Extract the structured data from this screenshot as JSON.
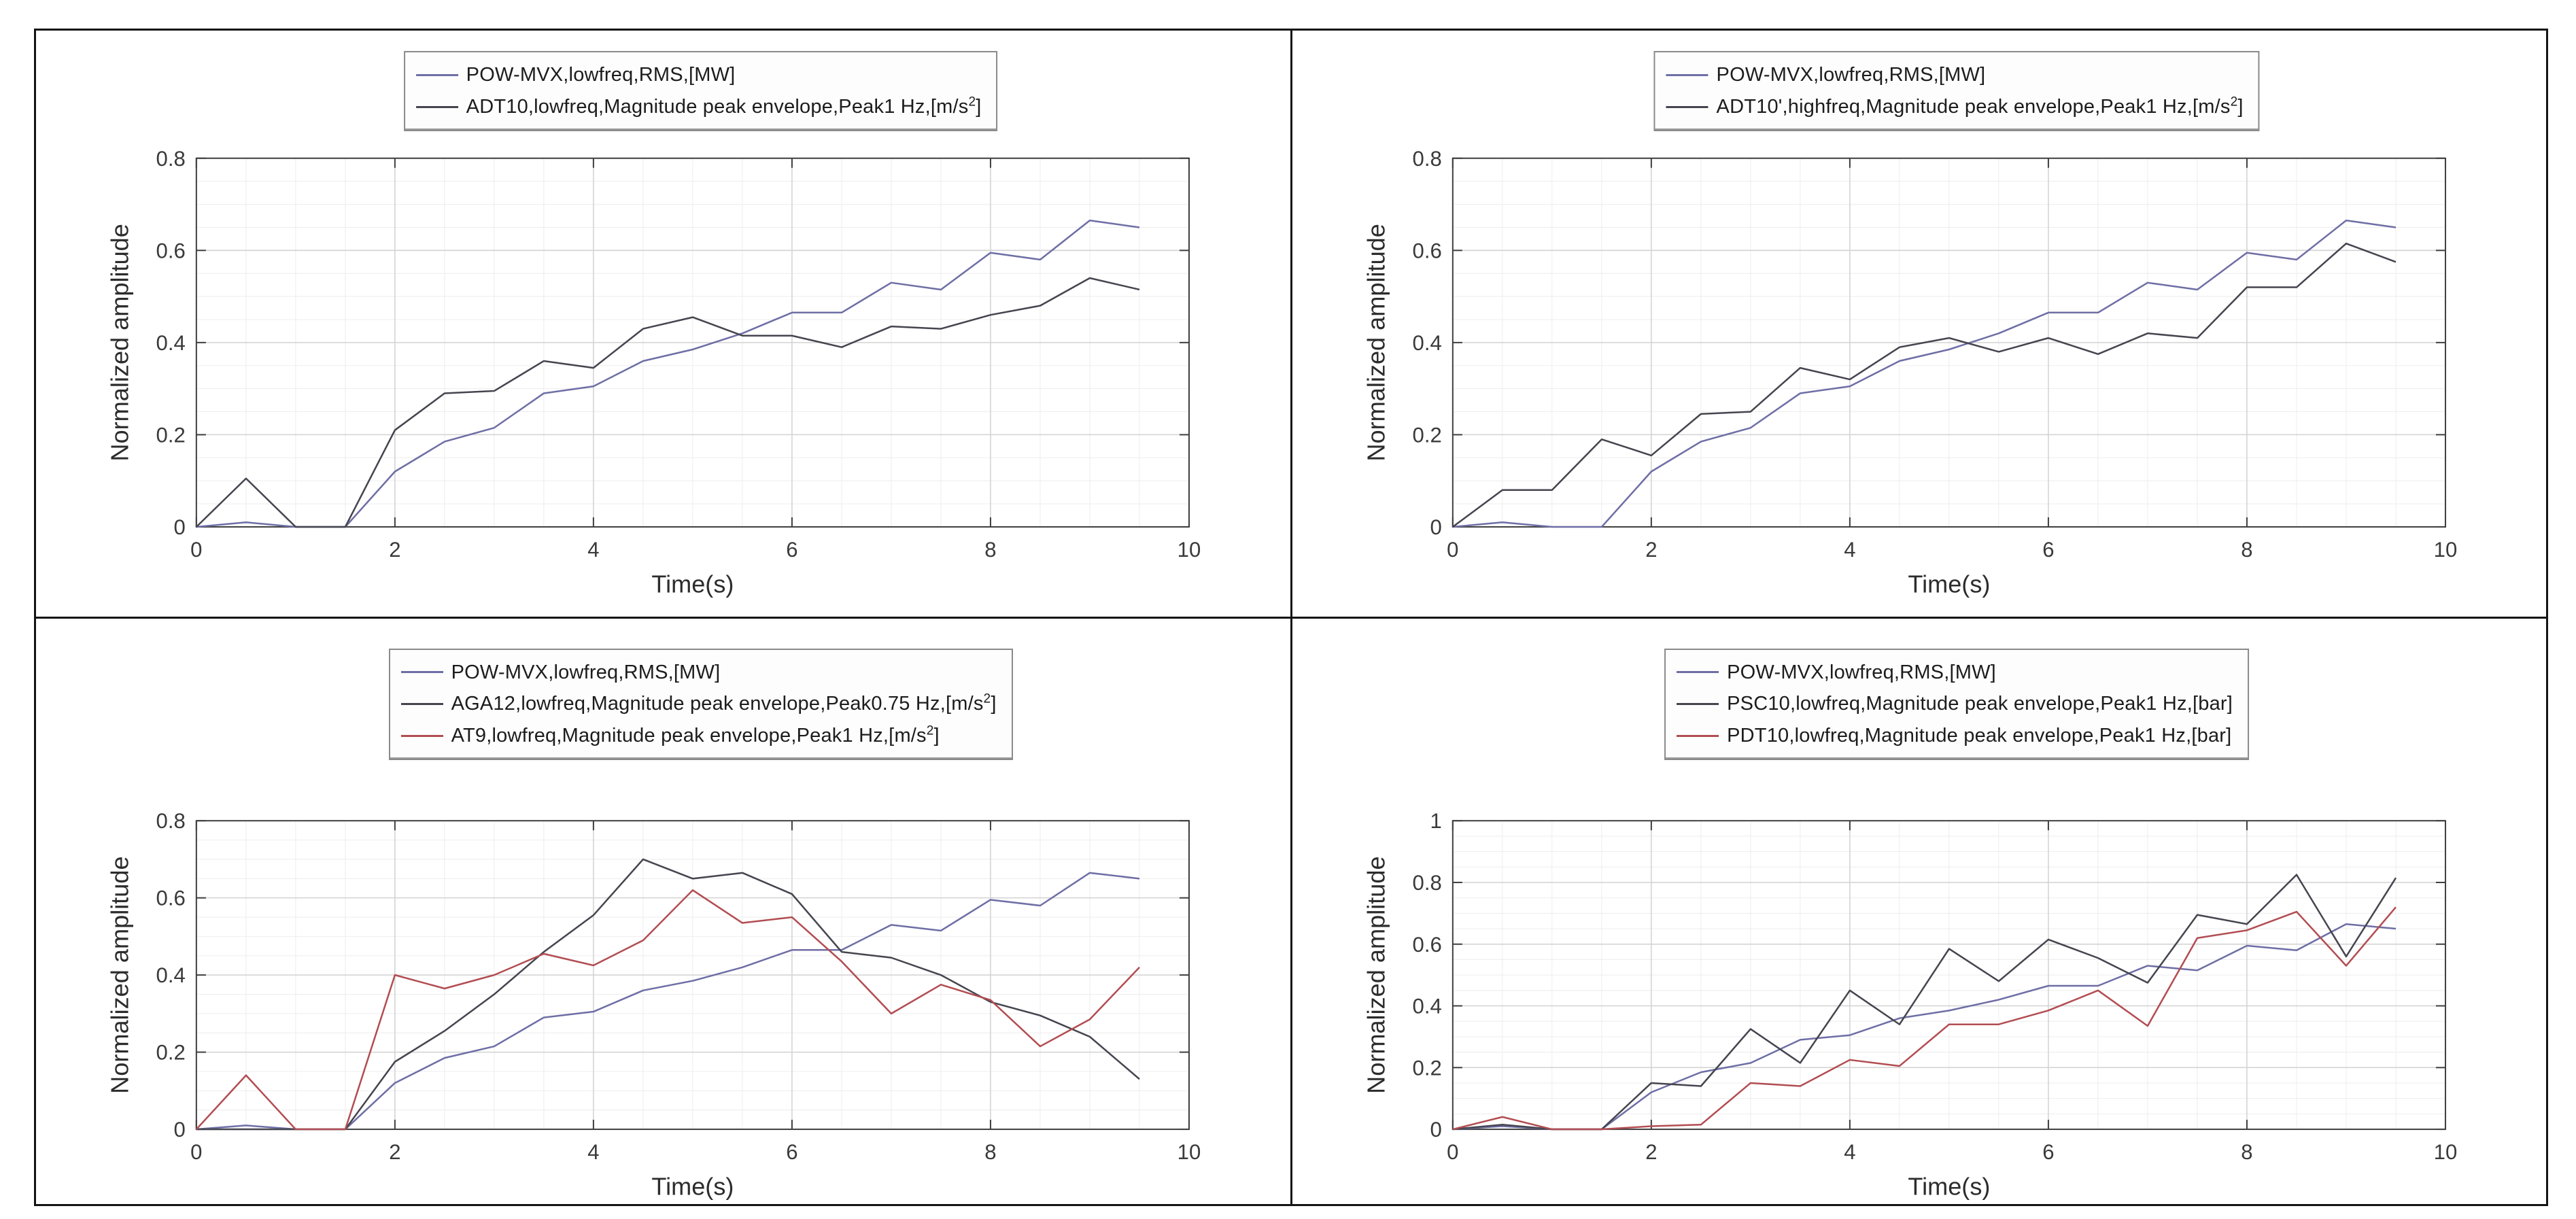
{
  "figure": {
    "layout": "2x2-grid",
    "background": "#ffffff",
    "border_color": "#141414",
    "axis_color": "#3f3f3f",
    "major_grid_color": "#d2d2d2",
    "minor_grid_color": "#efeded",
    "text_color": "#3a3a3a"
  },
  "chart_data": [
    {
      "type": "line",
      "position": "top-left",
      "xlabel": "Time(s)",
      "ylabel": "Normalized amplitude",
      "xlim": [
        0,
        10
      ],
      "ylim": [
        0,
        0.8
      ],
      "xticks": [
        0,
        2,
        4,
        6,
        8,
        10
      ],
      "xtick_labels": [
        "0",
        "2",
        "4",
        "6",
        "8",
        "10"
      ],
      "yticks": [
        0,
        0.2,
        0.4,
        0.6,
        0.8
      ],
      "ytick_labels": [
        "0",
        "0.2",
        "0.4",
        "0.6",
        "0.8"
      ],
      "x_minor_step": 0.5,
      "y_minor_step": 0.05,
      "grid": "on",
      "legend_position": "top-center",
      "x": [
        0,
        0.5,
        1,
        1.5,
        2,
        2.5,
        3,
        3.5,
        4,
        4.5,
        5,
        5.5,
        6,
        6.5,
        7,
        7.5,
        8,
        8.5,
        9,
        9.5
      ],
      "series": [
        {
          "name": "POW-MVX,lowfreq,RMS,[MW]",
          "label_pre": "POW-MVX,lowfreq,RMS,[MW]",
          "label_sup": "",
          "label_post": "",
          "color": "#6e6ea6",
          "values": [
            0,
            0.01,
            0,
            0,
            0.12,
            0.185,
            0.215,
            0.29,
            0.305,
            0.36,
            0.385,
            0.42,
            0.465,
            0.465,
            0.53,
            0.515,
            0.595,
            0.58,
            0.665,
            0.65
          ]
        },
        {
          "name": "ADT10,lowfreq,Magnitude peak envelope,Peak1 Hz,[m/s^2]",
          "label_pre": "ADT10,lowfreq,Magnitude peak envelope,Peak1 Hz,[m/s",
          "label_sup": "2",
          "label_post": "]",
          "color": "#45454f",
          "values": [
            0,
            0.105,
            0,
            0,
            0.21,
            0.29,
            0.295,
            0.36,
            0.345,
            0.43,
            0.455,
            0.415,
            0.415,
            0.39,
            0.435,
            0.43,
            0.46,
            0.48,
            0.54,
            0.515
          ]
        }
      ]
    },
    {
      "type": "line",
      "position": "top-right",
      "xlabel": "Time(s)",
      "ylabel": "Normalized amplitude",
      "xlim": [
        0,
        10
      ],
      "ylim": [
        0,
        0.8
      ],
      "xticks": [
        0,
        2,
        4,
        6,
        8,
        10
      ],
      "xtick_labels": [
        "0",
        "2",
        "4",
        "6",
        "8",
        "10"
      ],
      "yticks": [
        0,
        0.2,
        0.4,
        0.6,
        0.8
      ],
      "ytick_labels": [
        "0",
        "0.2",
        "0.4",
        "0.6",
        "0.8"
      ],
      "x_minor_step": 0.5,
      "y_minor_step": 0.05,
      "grid": "on",
      "legend_position": "top-center",
      "x": [
        0,
        0.5,
        1,
        1.5,
        2,
        2.5,
        3,
        3.5,
        4,
        4.5,
        5,
        5.5,
        6,
        6.5,
        7,
        7.5,
        8,
        8.5,
        9,
        9.5
      ],
      "series": [
        {
          "name": "POW-MVX,lowfreq,RMS,[MW]",
          "label_pre": "POW-MVX,lowfreq,RMS,[MW]",
          "label_sup": "",
          "label_post": "",
          "color": "#6e6ea6",
          "values": [
            0,
            0.01,
            0,
            0,
            0.12,
            0.185,
            0.215,
            0.29,
            0.305,
            0.36,
            0.385,
            0.42,
            0.465,
            0.465,
            0.53,
            0.515,
            0.595,
            0.58,
            0.665,
            0.65
          ]
        },
        {
          "name": "ADT10',highfreq,Magnitude peak envelope,Peak1 Hz,[m/s^2]",
          "label_pre": "ADT10',highfreq,Magnitude peak envelope,Peak1 Hz,[m/s",
          "label_sup": "2",
          "label_post": "]",
          "color": "#45454f",
          "values": [
            0,
            0.08,
            0.08,
            0.19,
            0.155,
            0.245,
            0.25,
            0.345,
            0.32,
            0.39,
            0.41,
            0.38,
            0.41,
            0.375,
            0.42,
            0.41,
            0.52,
            0.52,
            0.615,
            0.575
          ]
        }
      ]
    },
    {
      "type": "line",
      "position": "bottom-left",
      "xlabel": "Time(s)",
      "ylabel": "Normalized amplitude",
      "xlim": [
        0,
        10
      ],
      "ylim": [
        0,
        0.8
      ],
      "xticks": [
        0,
        2,
        4,
        6,
        8,
        10
      ],
      "xtick_labels": [
        "0",
        "2",
        "4",
        "6",
        "8",
        "10"
      ],
      "yticks": [
        0,
        0.2,
        0.4,
        0.6,
        0.8
      ],
      "ytick_labels": [
        "0",
        "0.2",
        "0.4",
        "0.6",
        "0.8"
      ],
      "x_minor_step": 0.5,
      "y_minor_step": 0.05,
      "grid": "on",
      "legend_position": "top-center",
      "x": [
        0,
        0.5,
        1,
        1.5,
        2,
        2.5,
        3,
        3.5,
        4,
        4.5,
        5,
        5.5,
        6,
        6.5,
        7,
        7.5,
        8,
        8.5,
        9,
        9.5
      ],
      "series": [
        {
          "name": "POW-MVX,lowfreq,RMS,[MW]",
          "label_pre": "POW-MVX,lowfreq,RMS,[MW]",
          "label_sup": "",
          "label_post": "",
          "color": "#6e6ea6",
          "values": [
            0,
            0.01,
            0,
            0,
            0.12,
            0.185,
            0.215,
            0.29,
            0.305,
            0.36,
            0.385,
            0.42,
            0.465,
            0.465,
            0.53,
            0.515,
            0.595,
            0.58,
            0.665,
            0.65
          ]
        },
        {
          "name": "AGA12,lowfreq,Magnitude peak envelope,Peak0.75 Hz,[m/s^2]",
          "label_pre": "AGA12,lowfreq,Magnitude peak envelope,Peak0.75 Hz,[m/s",
          "label_sup": "2",
          "label_post": "]",
          "color": "#45454f",
          "values": [
            0,
            0,
            0,
            0,
            0.175,
            0.255,
            0.35,
            0.46,
            0.555,
            0.7,
            0.65,
            0.665,
            0.61,
            0.46,
            0.445,
            0.4,
            0.33,
            0.295,
            0.24,
            0.13
          ]
        },
        {
          "name": "AT9,lowfreq,Magnitude peak envelope,Peak1 Hz,[m/s^2]",
          "label_pre": "AT9,lowfreq,Magnitude peak envelope,Peak1 Hz,[m/s",
          "label_sup": "2",
          "label_post": "]",
          "color": "#b24d52",
          "values": [
            0,
            0.14,
            0,
            0,
            0.4,
            0.365,
            0.4,
            0.455,
            0.425,
            0.49,
            0.62,
            0.535,
            0.55,
            0.435,
            0.3,
            0.375,
            0.335,
            0.215,
            0.285,
            0.42
          ]
        }
      ]
    },
    {
      "type": "line",
      "position": "bottom-right",
      "xlabel": "Time(s)",
      "ylabel": "Normalized amplitude",
      "xlim": [
        0,
        10
      ],
      "ylim": [
        0,
        1
      ],
      "xticks": [
        0,
        2,
        4,
        6,
        8,
        10
      ],
      "xtick_labels": [
        "0",
        "2",
        "4",
        "6",
        "8",
        "10"
      ],
      "yticks": [
        0,
        0.2,
        0.4,
        0.6,
        0.8,
        1
      ],
      "ytick_labels": [
        "0",
        "0.2",
        "0.4",
        "0.6",
        "0.8",
        "1"
      ],
      "x_minor_step": 0.5,
      "y_minor_step": 0.05,
      "grid": "on",
      "legend_position": "top-center",
      "x": [
        0,
        0.5,
        1,
        1.5,
        2,
        2.5,
        3,
        3.5,
        4,
        4.5,
        5,
        5.5,
        6,
        6.5,
        7,
        7.5,
        8,
        8.5,
        9,
        9.5
      ],
      "series": [
        {
          "name": "POW-MVX,lowfreq,RMS,[MW]",
          "label_pre": "POW-MVX,lowfreq,RMS,[MW]",
          "label_sup": "",
          "label_post": "",
          "color": "#6e6ea6",
          "values": [
            0,
            0.01,
            0,
            0,
            0.12,
            0.185,
            0.215,
            0.29,
            0.305,
            0.36,
            0.385,
            0.42,
            0.465,
            0.465,
            0.53,
            0.515,
            0.595,
            0.58,
            0.665,
            0.65
          ]
        },
        {
          "name": "PSC10,lowfreq,Magnitude peak envelope,Peak1 Hz,[bar]",
          "label_pre": "PSC10,lowfreq,Magnitude peak envelope,Peak1 Hz,[bar]",
          "label_sup": "",
          "label_post": "",
          "color": "#45454f",
          "values": [
            0,
            0.015,
            0,
            0,
            0.15,
            0.14,
            0.325,
            0.215,
            0.45,
            0.34,
            0.585,
            0.48,
            0.615,
            0.555,
            0.475,
            0.695,
            0.665,
            0.825,
            0.56,
            0.815
          ]
        },
        {
          "name": "PDT10,lowfreq,Magnitude peak envelope,Peak1 Hz,[bar]",
          "label_pre": "PDT10,lowfreq,Magnitude peak envelope,Peak1 Hz,[bar]",
          "label_sup": "",
          "label_post": "",
          "color": "#b24d52",
          "values": [
            0,
            0.04,
            0,
            0,
            0.01,
            0.015,
            0.15,
            0.14,
            0.225,
            0.205,
            0.34,
            0.34,
            0.385,
            0.45,
            0.335,
            0.62,
            0.645,
            0.705,
            0.53,
            0.72
          ]
        }
      ]
    }
  ]
}
